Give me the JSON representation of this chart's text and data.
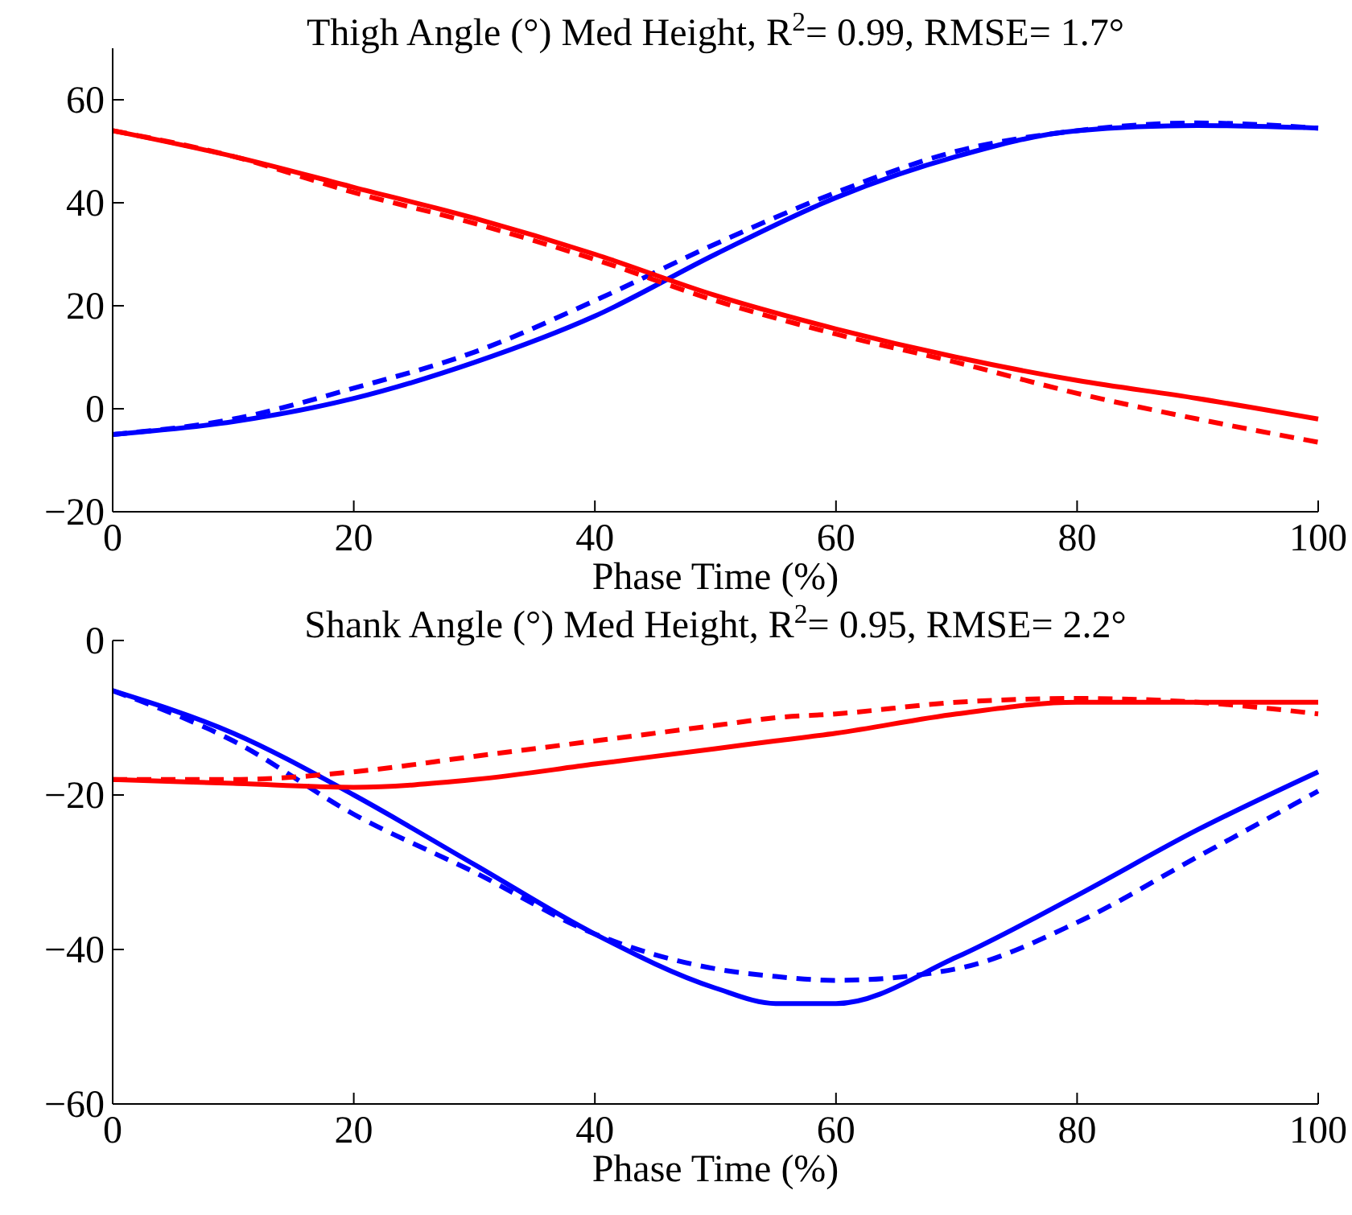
{
  "chart_data": [
    {
      "type": "line",
      "title": "Thigh Angle (°) Med Height, R$^{2}$= 0.99, RMSE= 1.7°",
      "xlabel": "Phase Time (%)",
      "x": [
        0,
        10,
        20,
        30,
        40,
        50,
        60,
        70,
        80,
        90,
        100
      ],
      "xlim": [
        0,
        100
      ],
      "xticks": [
        0,
        20,
        40,
        60,
        80,
        100
      ],
      "ylim": [
        -20,
        70
      ],
      "yticks": [
        -20,
        0,
        20,
        40,
        60
      ],
      "grid": false,
      "series": [
        {
          "color": "#0000ff",
          "line_style": "solid",
          "values": [
            -5,
            -2.5,
            2,
            9,
            18,
            30,
            41,
            49,
            54,
            55,
            54.5
          ]
        },
        {
          "color": "#0000ff",
          "line_style": "dashed",
          "values": [
            -5,
            -2,
            4,
            11,
            21,
            32,
            42,
            50,
            54,
            55.5,
            54.5
          ]
        },
        {
          "color": "#ff0000",
          "line_style": "solid",
          "values": [
            54,
            49,
            43,
            37,
            30,
            22,
            15.5,
            10,
            5.5,
            2,
            -2
          ]
        },
        {
          "color": "#ff0000",
          "line_style": "dashed",
          "values": [
            54,
            49,
            42,
            36,
            29,
            21,
            14.5,
            9,
            3,
            -2,
            -6.5
          ]
        }
      ]
    },
    {
      "type": "line",
      "title": "Shank Angle (°) Med Height, R$^{2}$= 0.95, RMSE= 2.2°",
      "xlabel": "Phase Time (%)",
      "x": [
        0,
        10,
        20,
        30,
        40,
        50,
        55,
        60,
        70,
        80,
        90,
        100
      ],
      "xlim": [
        0,
        100
      ],
      "xticks": [
        0,
        20,
        40,
        60,
        80,
        100
      ],
      "ylim": [
        -60,
        0
      ],
      "yticks": [
        -60,
        -40,
        -20,
        0
      ],
      "grid": false,
      "series": [
        {
          "color": "#0000ff",
          "line_style": "solid",
          "values": [
            -6.5,
            -12,
            -20,
            -29,
            -38,
            -45,
            -47,
            -47,
            -41,
            -33,
            -24.5,
            -17
          ]
        },
        {
          "color": "#0000ff",
          "line_style": "dashed",
          "values": [
            -6.5,
            -13,
            -22.5,
            -30,
            -38,
            -42.5,
            -43.5,
            -44,
            -42.5,
            -36.5,
            -28,
            -19.5
          ]
        },
        {
          "color": "#ff0000",
          "line_style": "solid",
          "values": [
            -18,
            -18.5,
            -19,
            -18,
            -16,
            -14,
            -13,
            -12,
            -9.5,
            -8,
            -8,
            -8
          ]
        },
        {
          "color": "#ff0000",
          "line_style": "dashed",
          "values": [
            -18,
            -18,
            -17,
            -15,
            -13,
            -11,
            -10,
            -9.5,
            -8,
            -7.5,
            -8,
            -9.5
          ]
        }
      ]
    }
  ]
}
